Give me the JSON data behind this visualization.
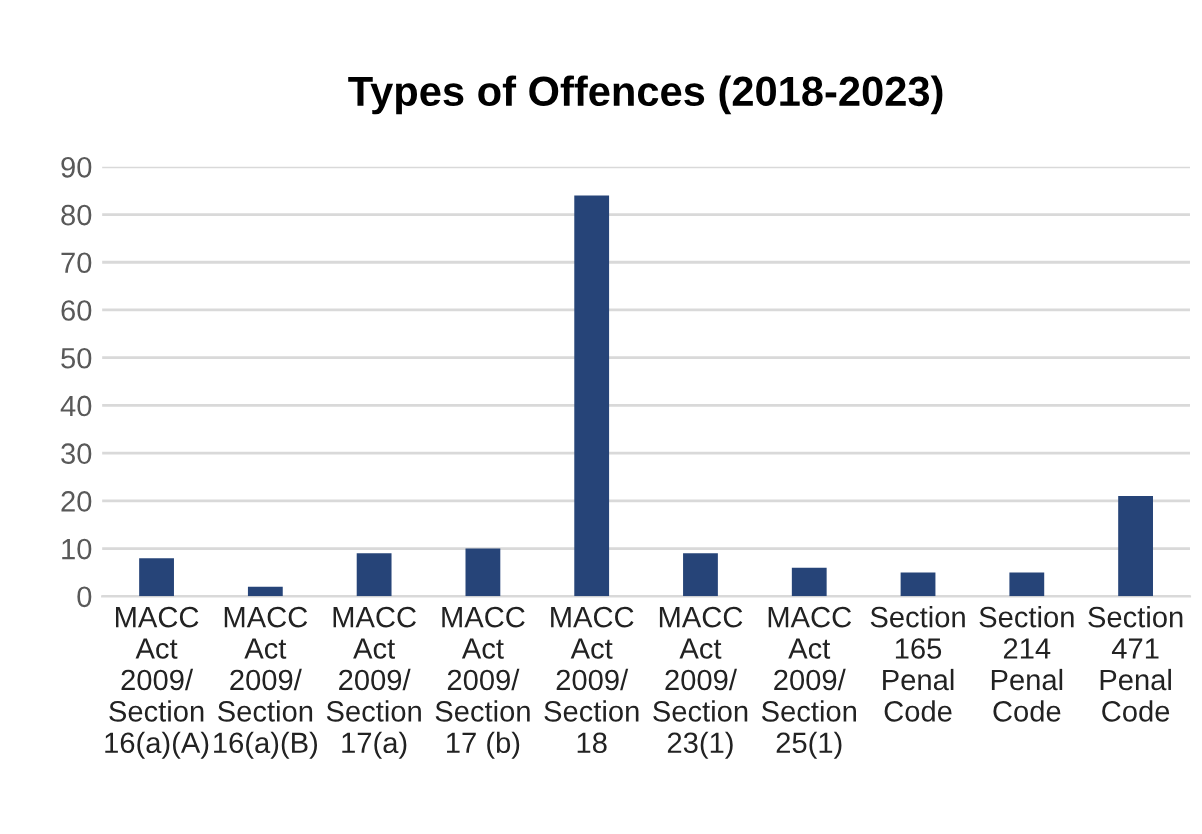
{
  "chart_data": {
    "type": "bar",
    "title": "Types of Offences (2018-2023)",
    "categories": [
      "MACC\nAct\n2009/\nSection\n16(a)(A)",
      "MACC\nAct\n2009/\nSection\n16(a)(B)",
      "MACC\nAct\n2009/\nSection\n17(a)",
      "MACC\nAct\n2009/\nSection\n17 (b)",
      "MACC\nAct\n2009/\nSection\n18",
      "MACC\nAct\n2009/\nSection\n23(1)",
      "MACC\nAct\n2009/\nSection\n25(1)",
      "Section\n165\nPenal\nCode",
      "Section\n214\nPenal\nCode",
      "Section\n471\nPenal\nCode"
    ],
    "values": [
      8,
      2,
      9,
      10,
      84,
      9,
      6,
      5,
      5,
      21
    ],
    "color": "#264478",
    "ylim": [
      0,
      90
    ],
    "yticks": [
      0,
      10,
      20,
      30,
      40,
      50,
      60,
      70,
      80,
      90
    ],
    "grid": "y"
  }
}
